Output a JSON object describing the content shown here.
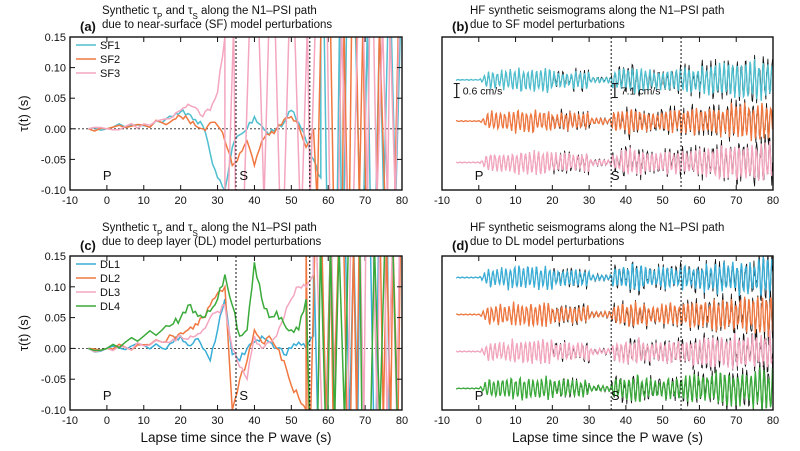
{
  "chart_data": [
    {
      "id": "a",
      "type": "line",
      "panel_label": "(a)",
      "title_line1": "Synthetic τ",
      "title_sub1": "P",
      "title_mid": " and τ",
      "title_sub2": "S",
      "title_end": " along the N1–PSI path",
      "title_line2": "due to near-surface (SF) model perturbations",
      "ylabel": "τ(t) (s)",
      "xlabel": "",
      "xlim": [
        -10,
        80
      ],
      "ylim": [
        -0.1,
        0.15
      ],
      "xticks": [
        "-10",
        "0",
        "10",
        "20",
        "30",
        "40",
        "50",
        "60",
        "70",
        "80"
      ],
      "yticks": [
        "-0.10",
        "-0.05",
        "0.00",
        "0.05",
        "0.10",
        "0.15"
      ],
      "zero_line": true,
      "vlines": [
        35,
        55
      ],
      "phases": [
        {
          "label": "P",
          "x": 0
        },
        {
          "label": "S",
          "x": 37
        }
      ],
      "legend": "top-left",
      "series": [
        {
          "name": "SF1",
          "color": "#4fbfcf",
          "x": [
            -5,
            0,
            5,
            10,
            15,
            18,
            20,
            22,
            24,
            26,
            28,
            30,
            32,
            34,
            36,
            38,
            40,
            42,
            44,
            46,
            48,
            50,
            52,
            54,
            56,
            58,
            60
          ],
          "y": [
            0,
            0,
            0.003,
            0.005,
            0.01,
            0.02,
            0.028,
            0.025,
            0.015,
            0.005,
            -0.04,
            -0.08,
            -0.1,
            -0.03,
            -0.01,
            0.0,
            0.02,
            0.005,
            -0.01,
            0.0,
            0.01,
            0.03,
            0.01,
            -0.02,
            -0.05,
            -0.08,
            -0.1
          ],
          "spikes_from": 58
        },
        {
          "name": "SF2",
          "color": "#f07840",
          "x": [
            -5,
            0,
            5,
            10,
            15,
            18,
            20,
            22,
            24,
            26,
            28,
            30,
            32,
            34,
            36,
            38,
            40,
            42,
            44,
            46,
            48,
            50,
            52,
            54,
            56,
            58,
            60
          ],
          "y": [
            0,
            0,
            0.002,
            0.006,
            0.01,
            0.015,
            0.02,
            0.015,
            0.005,
            0.0,
            0.01,
            0.005,
            -0.02,
            -0.06,
            -0.04,
            -0.02,
            -0.06,
            -0.02,
            -0.01,
            0.0,
            0.015,
            0.02,
            0.005,
            -0.03,
            0.0,
            -0.1,
            -0.1
          ],
          "spikes_from": 57
        },
        {
          "name": "SF3",
          "color": "#f4a6bf",
          "x": [
            -5,
            0,
            5,
            10,
            15,
            18,
            20,
            22,
            24,
            26,
            28,
            30,
            32,
            34,
            36,
            38,
            40,
            42,
            44,
            46,
            48,
            50,
            52,
            54,
            56,
            58,
            60
          ],
          "y": [
            0,
            0,
            0.004,
            0.008,
            0.015,
            0.02,
            0.03,
            0.04,
            0.035,
            0.02,
            0.03,
            0.06,
            0.15,
            -0.1,
            0.15,
            -0.08,
            0.1,
            -0.1,
            0.02,
            0.0,
            0.01,
            0.02,
            0.05,
            0.15,
            0.1,
            -0.1,
            0.15
          ],
          "spikes_from": 32
        }
      ]
    },
    {
      "id": "b",
      "type": "line",
      "panel_label": "(b)",
      "title_line1": "HF synthetic seismograms along the N1–PSI path",
      "title_line2": "due to SF model perturbations",
      "xlabel": "",
      "xlim": [
        -10,
        80
      ],
      "xticks": [
        "-10",
        "0",
        "10",
        "20",
        "30",
        "40",
        "50",
        "60",
        "70",
        "80"
      ],
      "vlines": [
        36,
        55
      ],
      "phases": [
        {
          "label": "P",
          "x": 0
        },
        {
          "label": "S",
          "x": 37
        }
      ],
      "scale_bars": [
        {
          "label": "0.6 cm/s",
          "x": -6
        },
        {
          "label": "7.1 cm/s",
          "x": 37
        }
      ],
      "traces": [
        {
          "color": "#4fbfcf",
          "offset": 0.72
        },
        {
          "color": "#f07840",
          "offset": 0.45
        },
        {
          "color": "#f4a6bf",
          "offset": 0.18
        }
      ]
    },
    {
      "id": "c",
      "type": "line",
      "panel_label": "(c)",
      "title_line1": "Synthetic τ",
      "title_sub1": "P",
      "title_mid": " and τ",
      "title_sub2": "S",
      "title_end": " along the N1–PSI path",
      "title_line2": "due to deep layer (DL) model perturbations",
      "ylabel": "τ(t) (s)",
      "xlabel": "Lapse time since the P wave (s)",
      "xlim": [
        -10,
        80
      ],
      "ylim": [
        -0.1,
        0.15
      ],
      "xticks": [
        "-10",
        "0",
        "10",
        "20",
        "30",
        "40",
        "50",
        "60",
        "70",
        "80"
      ],
      "yticks": [
        "-0.10",
        "-0.05",
        "0.00",
        "0.05",
        "0.10",
        "0.15"
      ],
      "zero_line": true,
      "vlines": [
        35,
        55
      ],
      "phases": [
        {
          "label": "P",
          "x": 0
        },
        {
          "label": "S",
          "x": 37
        }
      ],
      "legend": "top-left",
      "series": [
        {
          "name": "DL1",
          "color": "#3aaed6",
          "x": [
            -5,
            0,
            5,
            10,
            15,
            18,
            20,
            22,
            24,
            26,
            28,
            30,
            32,
            34,
            36,
            38,
            40,
            42,
            44,
            46,
            48,
            50,
            52,
            54,
            56
          ],
          "y": [
            0,
            0,
            -0.002,
            0.005,
            0.0,
            0.01,
            0.02,
            0.005,
            0.015,
            0.0,
            -0.02,
            0.03,
            0.08,
            -0.01,
            -0.02,
            0.0,
            0.01,
            0.02,
            0.01,
            0.0,
            -0.01,
            0.0,
            0.01,
            0.0,
            0.02
          ],
          "spikes_from": 56
        },
        {
          "name": "DL2",
          "color": "#f07840",
          "x": [
            -5,
            0,
            5,
            10,
            15,
            18,
            20,
            22,
            24,
            26,
            28,
            30,
            32,
            34,
            36,
            38,
            40,
            42,
            44,
            46,
            48,
            50,
            52,
            54,
            56
          ],
          "y": [
            0,
            0,
            0.002,
            0.006,
            0.01,
            0.02,
            0.025,
            0.03,
            0.04,
            0.05,
            0.07,
            0.09,
            0.1,
            -0.1,
            -0.05,
            -0.02,
            0.03,
            0.01,
            0.02,
            0.0,
            -0.02,
            -0.06,
            -0.08,
            -0.1,
            0.15
          ],
          "spikes_from": 54
        },
        {
          "name": "DL3",
          "color": "#f4a6bf",
          "x": [
            -5,
            0,
            5,
            10,
            15,
            18,
            20,
            22,
            24,
            26,
            28,
            30,
            32,
            34,
            36,
            38,
            40,
            42,
            44,
            46,
            48,
            50,
            52,
            54,
            56
          ],
          "y": [
            0,
            0,
            0.002,
            0.004,
            0.01,
            0.015,
            0.02,
            0.015,
            0.02,
            0.03,
            0.05,
            0.06,
            0.07,
            0.0,
            -0.03,
            -0.05,
            0.02,
            0.0,
            0.01,
            0.02,
            0.05,
            0.08,
            0.1,
            0.1,
            0.12
          ],
          "spikes_from": 56
        },
        {
          "name": "DL4",
          "color": "#3aaa3a",
          "x": [
            -5,
            0,
            5,
            10,
            15,
            18,
            20,
            22,
            24,
            26,
            28,
            30,
            32,
            34,
            36,
            38,
            40,
            42,
            44,
            46,
            48,
            50,
            52,
            54,
            56
          ],
          "y": [
            0,
            0,
            0.01,
            0.02,
            0.03,
            0.04,
            0.05,
            0.07,
            0.06,
            0.05,
            0.06,
            0.08,
            0.12,
            0.07,
            0.02,
            0.03,
            0.14,
            0.08,
            0.05,
            0.06,
            0.04,
            0.03,
            0.03,
            0.08,
            0.15
          ],
          "spikes_from": 55
        }
      ]
    },
    {
      "id": "d",
      "type": "line",
      "panel_label": "(d)",
      "title_line1": "HF synthetic seismograms along the N1–PSI path",
      "title_line2": "due to DL model perturbations",
      "xlabel": "Lapse time since the P wave (s)",
      "xlim": [
        -10,
        80
      ],
      "xticks": [
        "-10",
        "0",
        "10",
        "20",
        "30",
        "40",
        "50",
        "60",
        "70",
        "80"
      ],
      "vlines": [
        36,
        55
      ],
      "phases": [
        {
          "label": "P",
          "x": 0
        },
        {
          "label": "S",
          "x": 37
        }
      ],
      "traces": [
        {
          "color": "#3aaed6",
          "offset": 0.86
        },
        {
          "color": "#f07840",
          "offset": 0.62
        },
        {
          "color": "#f4a6bf",
          "offset": 0.38
        },
        {
          "color": "#3aaa3a",
          "offset": 0.14
        }
      ]
    }
  ]
}
